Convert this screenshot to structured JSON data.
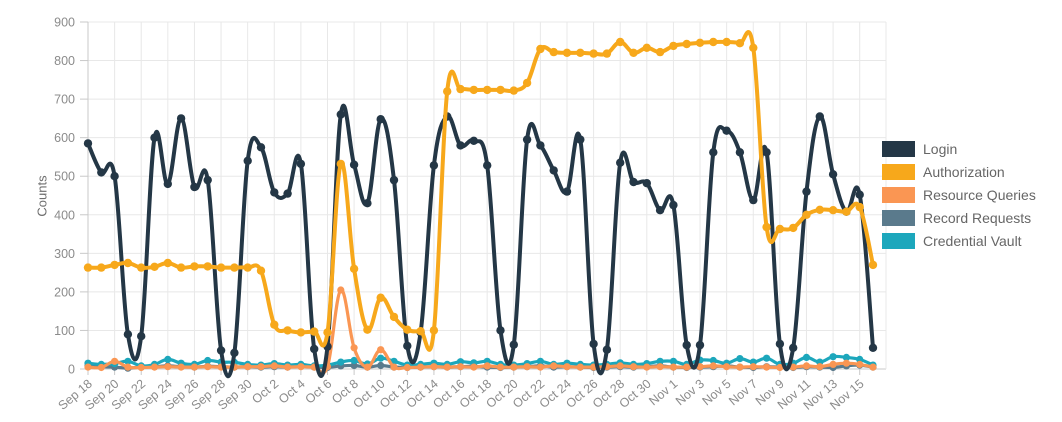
{
  "chart_data": {
    "type": "line",
    "title": "",
    "xlabel": "",
    "ylabel": "Counts",
    "ylim": [
      0,
      900
    ],
    "y_ticks": [
      0,
      100,
      200,
      300,
      400,
      500,
      600,
      700,
      800,
      900
    ],
    "grid": true,
    "legend_position": "right",
    "x_tick_labels": [
      "Sep 18",
      "Sep 20",
      "Sep 22",
      "Sep 24",
      "Sep 26",
      "Sep 28",
      "Sep 30",
      "Oct 2",
      "Oct 4",
      "Oct 6",
      "Oct 8",
      "Oct 10",
      "Oct 12",
      "Oct 14",
      "Oct 16",
      "Oct 18",
      "Oct 20",
      "Oct 22",
      "Oct 24",
      "Oct 26",
      "Oct 28",
      "Oct 30",
      "Nov 1",
      "Nov 3",
      "Nov 5",
      "Nov 7",
      "Nov 9",
      "Nov 11",
      "Nov 13",
      "Nov 15"
    ],
    "x": [
      "Sep 18",
      "Sep 19",
      "Sep 20",
      "Sep 21",
      "Sep 22",
      "Sep 23",
      "Sep 24",
      "Sep 25",
      "Sep 26",
      "Sep 27",
      "Sep 28",
      "Sep 29",
      "Sep 30",
      "Oct 1",
      "Oct 2",
      "Oct 3",
      "Oct 4",
      "Oct 5",
      "Oct 6",
      "Oct 7",
      "Oct 8",
      "Oct 9",
      "Oct 10",
      "Oct 11",
      "Oct 12",
      "Oct 13",
      "Oct 14",
      "Oct 15",
      "Oct 16",
      "Oct 17",
      "Oct 18",
      "Oct 19",
      "Oct 20",
      "Oct 21",
      "Oct 22",
      "Oct 23",
      "Oct 24",
      "Oct 25",
      "Oct 26",
      "Oct 27",
      "Oct 28",
      "Oct 29",
      "Oct 30",
      "Oct 31",
      "Nov 1",
      "Nov 2",
      "Nov 3",
      "Nov 4",
      "Nov 5",
      "Nov 6",
      "Nov 7",
      "Nov 8",
      "Nov 9",
      "Nov 10",
      "Nov 11",
      "Nov 12",
      "Nov 13",
      "Nov 14",
      "Nov 15",
      "Nov 16"
    ],
    "series": [
      {
        "name": "Login",
        "color": "#243746",
        "values": [
          585,
          510,
          500,
          90,
          85,
          600,
          480,
          650,
          472,
          490,
          48,
          42,
          540,
          575,
          458,
          455,
          532,
          52,
          58,
          660,
          530,
          430,
          648,
          490,
          60,
          95,
          528,
          655,
          580,
          592,
          528,
          100,
          63,
          595,
          580,
          515,
          460,
          595,
          65,
          50,
          535,
          485,
          482,
          412,
          425,
          62,
          62,
          562,
          618,
          562,
          438,
          562,
          65,
          55,
          460,
          655,
          505,
          408,
          452,
          55
        ]
      },
      {
        "name": "Authorization",
        "color": "#F7A81B",
        "values": [
          263,
          263,
          270,
          275,
          263,
          265,
          275,
          263,
          266,
          266,
          263,
          263,
          263,
          255,
          115,
          100,
          95,
          97,
          95,
          532,
          260,
          102,
          185,
          135,
          102,
          98,
          100,
          720,
          726,
          724,
          724,
          724,
          722,
          742,
          830,
          822,
          820,
          820,
          818,
          818,
          848,
          820,
          833,
          822,
          838,
          843,
          846,
          848,
          848,
          845,
          833,
          368,
          363,
          366,
          400,
          413,
          412,
          408,
          420,
          270
        ]
      },
      {
        "name": "Resource Queries",
        "color": "#FA9653",
        "values": [
          5,
          4,
          20,
          5,
          4,
          5,
          6,
          5,
          5,
          6,
          5,
          5,
          6,
          6,
          8,
          5,
          6,
          5,
          6,
          205,
          55,
          5,
          50,
          5,
          4,
          5,
          6,
          5,
          6,
          5,
          8,
          5,
          5,
          6,
          5,
          8,
          6,
          5,
          5,
          6,
          8,
          6,
          5,
          6,
          5,
          5,
          6,
          8,
          6,
          5,
          6,
          5,
          4,
          5,
          8,
          6,
          12,
          15,
          12,
          5
        ]
      },
      {
        "name": "Record Requests",
        "color": "#5A7A8C",
        "values": [
          8,
          6,
          5,
          2,
          5,
          6,
          8,
          6,
          5,
          7,
          6,
          5,
          6,
          5,
          6,
          5,
          7,
          5,
          4,
          8,
          9,
          5,
          9,
          5,
          4,
          5,
          6,
          5,
          6,
          7,
          5,
          4,
          5,
          6,
          8,
          5,
          6,
          5,
          4,
          5,
          6,
          5,
          6,
          8,
          5,
          4,
          5,
          6,
          8,
          5,
          4,
          6,
          5,
          4,
          6,
          5,
          4,
          8,
          10,
          5
        ]
      },
      {
        "name": "Credential Vault",
        "color": "#1CA7BC",
        "values": [
          15,
          12,
          14,
          20,
          8,
          12,
          25,
          15,
          12,
          22,
          18,
          17,
          12,
          10,
          14,
          10,
          12,
          8,
          10,
          18,
          22,
          13,
          28,
          20,
          10,
          12,
          15,
          12,
          19,
          16,
          20,
          12,
          10,
          14,
          20,
          12,
          15,
          12,
          10,
          12,
          16,
          12,
          14,
          20,
          20,
          12,
          23,
          22,
          15,
          27,
          18,
          28,
          12,
          15,
          30,
          18,
          32,
          30,
          25,
          10
        ]
      }
    ],
    "colors": {
      "grid": "#e8e8e8",
      "axis": "#c9c9c9",
      "tick_text": "#8b8b8b",
      "legend_text": "#666666",
      "background": "#ffffff"
    }
  }
}
